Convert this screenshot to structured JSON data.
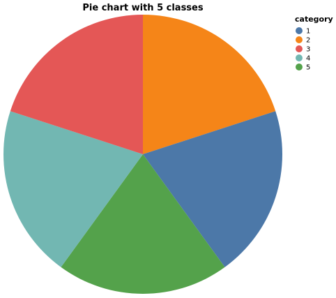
{
  "chart_data": {
    "type": "pie",
    "title": "Pie chart with 5 classes",
    "legend_title": "category",
    "legend_position": "top-right",
    "categories": [
      "1",
      "2",
      "3",
      "4",
      "5"
    ],
    "values": [
      1,
      1,
      1,
      1,
      1
    ],
    "colors": [
      "#4c78a8",
      "#f58518",
      "#e45756",
      "#72b7b2",
      "#54a24b"
    ]
  }
}
